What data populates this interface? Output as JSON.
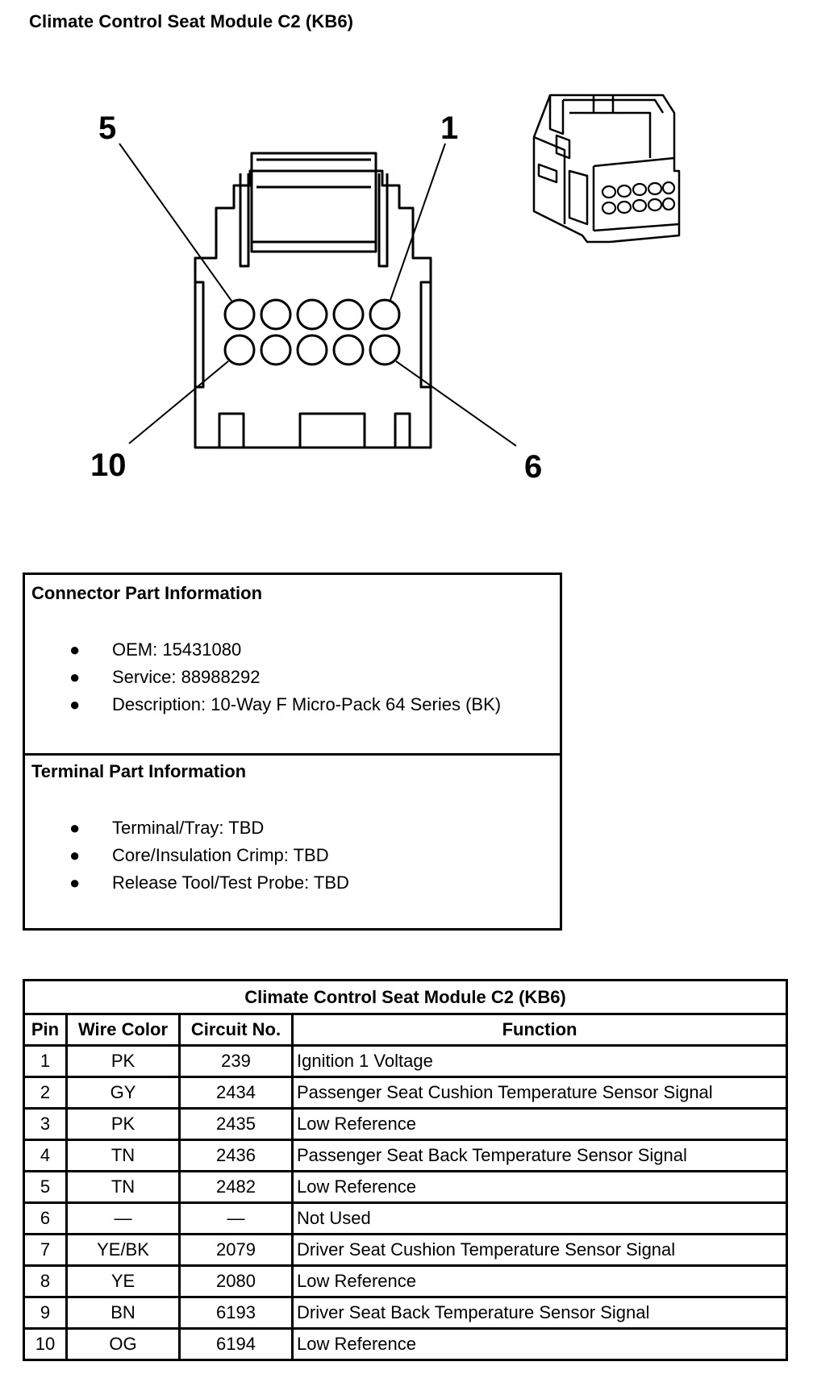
{
  "page_title": "Climate Control Seat Module C2 (KB6)",
  "diagram": {
    "pin_labels": {
      "top_left": "5",
      "top_right": "1",
      "bottom_left": "10",
      "bottom_right": "6"
    }
  },
  "connector_info": {
    "heading": "Connector Part Information",
    "items": [
      "OEM: 15431080",
      "Service: 88988292",
      "Description: 10-Way F Micro-Pack 64 Series (BK)"
    ]
  },
  "terminal_info": {
    "heading": "Terminal Part Information",
    "items": [
      "Terminal/Tray: TBD",
      "Core/Insulation Crimp: TBD",
      "Release Tool/Test Probe: TBD"
    ]
  },
  "pin_table": {
    "caption": "Climate Control Seat Module C2 (KB6)",
    "headers": [
      "Pin",
      "Wire Color",
      "Circuit No.",
      "Function"
    ],
    "rows": [
      [
        "1",
        "PK",
        "239",
        "Ignition 1 Voltage"
      ],
      [
        "2",
        "GY",
        "2434",
        "Passenger Seat Cushion Temperature Sensor Signal"
      ],
      [
        "3",
        "PK",
        "2435",
        "Low Reference"
      ],
      [
        "4",
        "TN",
        "2436",
        "Passenger Seat Back Temperature Sensor Signal"
      ],
      [
        "5",
        "TN",
        "2482",
        "Low Reference"
      ],
      [
        "6",
        "—",
        "—",
        "Not Used"
      ],
      [
        "7",
        "YE/BK",
        "2079",
        "Driver Seat Cushion Temperature Sensor Signal"
      ],
      [
        "8",
        "YE",
        "2080",
        "Low Reference"
      ],
      [
        "9",
        "BN",
        "6193",
        "Driver Seat Back Temperature Sensor Signal"
      ],
      [
        "10",
        "OG",
        "6194",
        "Low Reference"
      ]
    ]
  }
}
